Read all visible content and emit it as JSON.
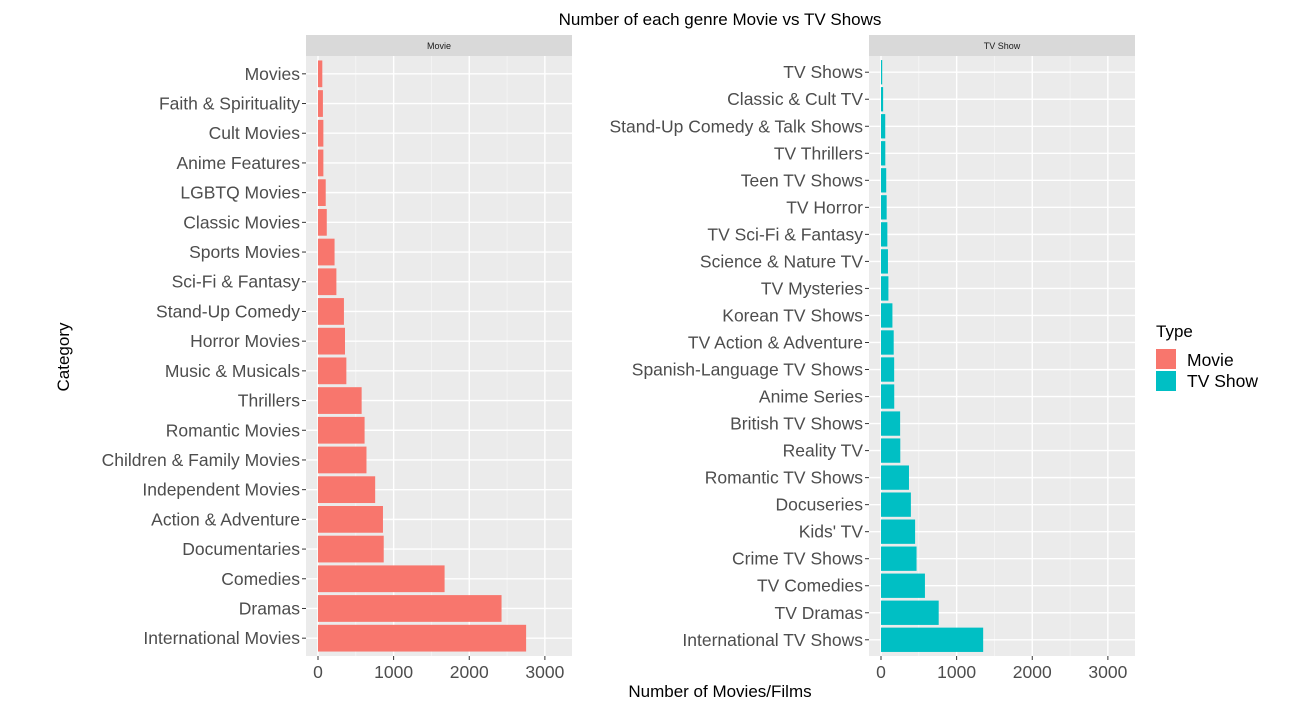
{
  "chart_data": {
    "type": "bar",
    "orientation": "horizontal",
    "title": "Number of each genre Movie vs TV Shows",
    "xlabel": "Number of Movies/Films",
    "ylabel": "Category",
    "xlim": [
      0,
      3200
    ],
    "x_ticks": [
      0,
      1000,
      2000,
      3000
    ],
    "grid": true,
    "legend": {
      "title": "Type",
      "position": "right",
      "entries": [
        {
          "label": "Movie",
          "color": "#F8766D"
        },
        {
          "label": "TV Show",
          "color": "#00BFC4"
        }
      ]
    },
    "panels": [
      {
        "strip": "Movie",
        "color": "#F8766D",
        "categories": [
          "Movies",
          "Faith & Spirituality",
          "Cult Movies",
          "Anime Features",
          "LGBTQ Movies",
          "Classic Movies",
          "Sports Movies",
          "Sci-Fi & Fantasy",
          "Stand-Up Comedy",
          "Horror Movies",
          "Music & Musicals",
          "Thrillers",
          "Romantic Movies",
          "Children & Family Movies",
          "Independent Movies",
          "Action & Adventure",
          "Documentaries",
          "Comedies",
          "Dramas",
          "International Movies"
        ],
        "values": [
          57,
          65,
          71,
          71,
          102,
          116,
          219,
          243,
          343,
          357,
          375,
          577,
          616,
          641,
          756,
          859,
          869,
          1674,
          2427,
          2752
        ]
      },
      {
        "strip": "TV Show",
        "color": "#00BFC4",
        "categories": [
          "TV Shows",
          "Classic & Cult TV",
          "Stand-Up Comedy & Talk Shows",
          "TV Thrillers",
          "Teen TV Shows",
          "TV Horror",
          "TV Sci-Fi & Fantasy",
          "Science & Nature TV",
          "TV Mysteries",
          "Korean TV Shows",
          "TV Action & Adventure",
          "Spanish-Language TV Shows",
          "Anime Series",
          "British TV Shows",
          "Reality TV",
          "Romantic TV Shows",
          "Docuseries",
          "Kids' TV",
          "Crime TV Shows",
          "TV Comedies",
          "TV Dramas",
          "International TV Shows"
        ],
        "values": [
          16,
          28,
          56,
          57,
          69,
          75,
          84,
          92,
          98,
          151,
          168,
          174,
          175,
          253,
          255,
          370,
          395,
          451,
          470,
          581,
          763,
          1351
        ]
      }
    ]
  }
}
